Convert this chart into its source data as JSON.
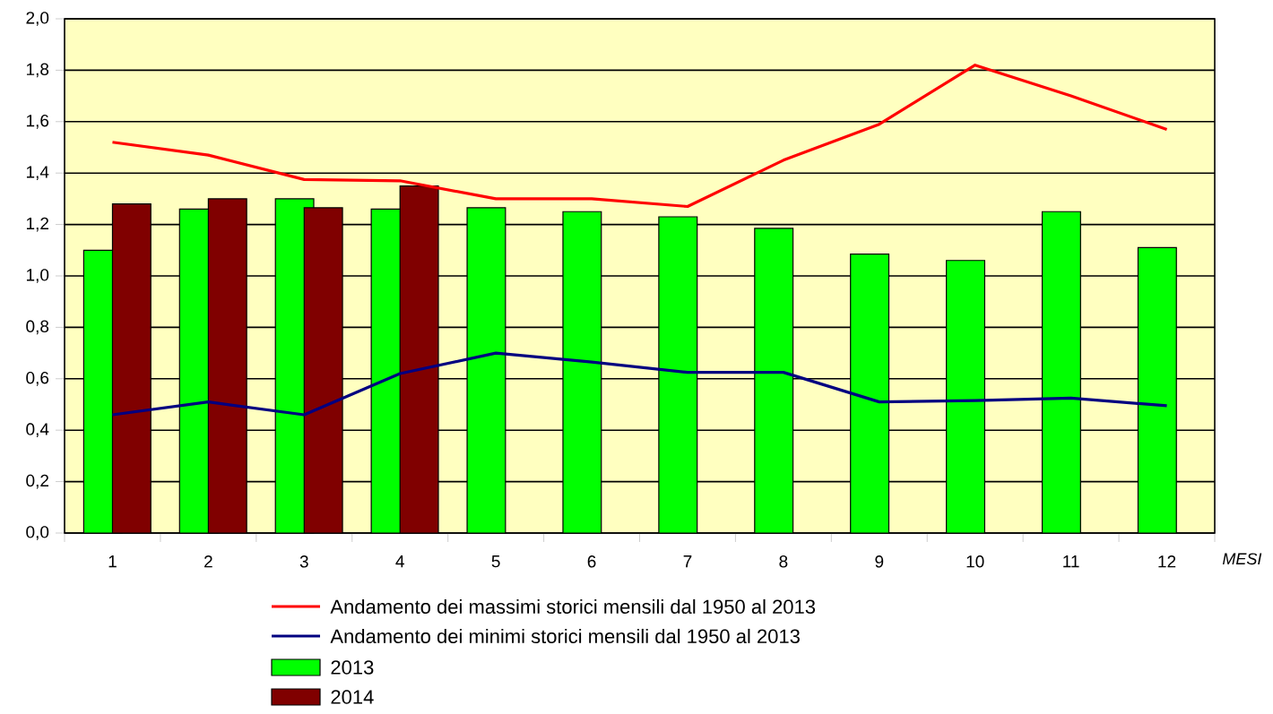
{
  "chart_data": {
    "type": "bar",
    "categories": [
      "1",
      "2",
      "3",
      "4",
      "5",
      "6",
      "7",
      "8",
      "9",
      "10",
      "11",
      "12"
    ],
    "xlabel": "MESI",
    "series": [
      {
        "name": "Andamento dei massimi storici mensili dal 1950 al 2013",
        "type": "line",
        "color": "#ff0000",
        "values": [
          1.52,
          1.47,
          1.375,
          1.37,
          1.3,
          1.3,
          1.27,
          1.45,
          1.59,
          1.82,
          1.7,
          1.57
        ]
      },
      {
        "name": "Andamento dei minimi storici mensili dal 1950 al 2013",
        "type": "line",
        "color": "#000080",
        "values": [
          0.46,
          0.51,
          0.46,
          0.62,
          0.7,
          0.665,
          0.625,
          0.625,
          0.51,
          0.515,
          0.525,
          0.495
        ]
      },
      {
        "name": "2013",
        "color": "#00ff00",
        "values": [
          1.1,
          1.26,
          1.3,
          1.26,
          1.265,
          1.25,
          1.23,
          1.185,
          1.085,
          1.06,
          1.25,
          1.11
        ]
      },
      {
        "name": "2014",
        "color": "#800000",
        "values": [
          1.28,
          1.3,
          1.265,
          1.35,
          null,
          null,
          null,
          null,
          null,
          null,
          null,
          null
        ]
      }
    ],
    "ylim": [
      0,
      2.0
    ],
    "yticks": [
      {
        "value": 0,
        "label": "0,0"
      },
      {
        "value": 0.2,
        "label": "0,2"
      },
      {
        "value": 0.4,
        "label": "0,4"
      },
      {
        "value": 0.6,
        "label": "0,6"
      },
      {
        "value": 0.8,
        "label": "0,8"
      },
      {
        "value": 1.0,
        "label": "1,0"
      },
      {
        "value": 1.2,
        "label": "1,2"
      },
      {
        "value": 1.4,
        "label": "1,4"
      },
      {
        "value": 1.6,
        "label": "1,6"
      },
      {
        "value": 1.8,
        "label": "1,8"
      },
      {
        "value": 2.0,
        "label": "2,0"
      }
    ],
    "grid": "y",
    "legend": "bottom"
  }
}
